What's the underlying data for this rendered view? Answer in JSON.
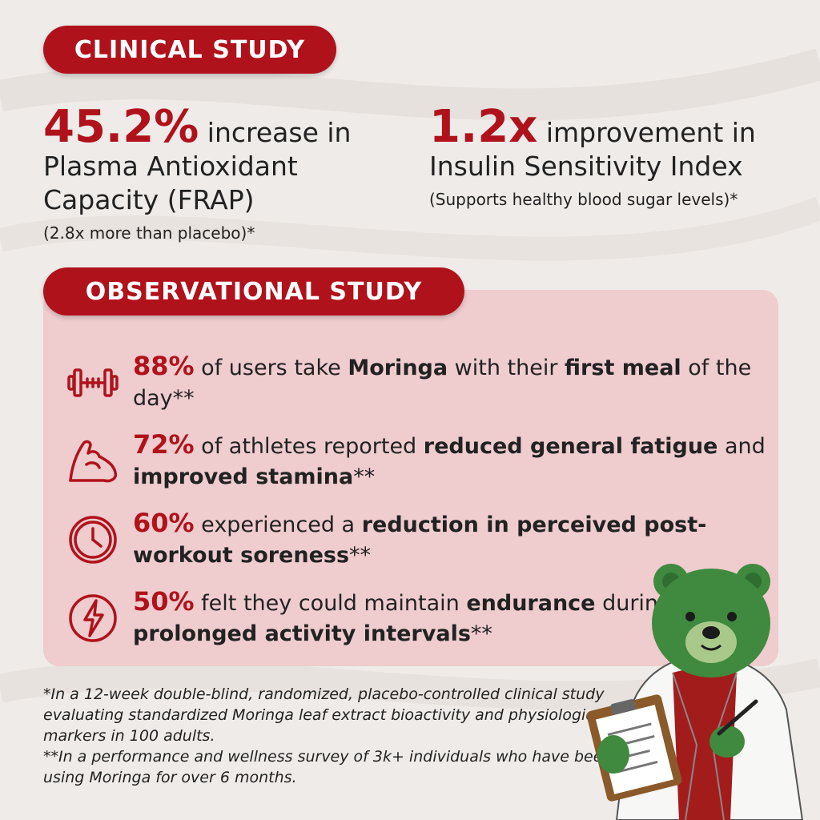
{
  "clinical": {
    "heading": "CLINICAL STUDY",
    "stat1": {
      "value": "45.2%",
      "text_inline": "increase in",
      "text_rest": "Plasma Antioxidant Capacity (FRAP)",
      "sub": "(2.8x more than placebo)*"
    },
    "stat2": {
      "value": "1.2x",
      "text_inline": "improvement in",
      "text_rest": "Insulin Sensitivity Index",
      "sub": "(Supports healthy blood sugar levels)*"
    }
  },
  "observational": {
    "heading": "OBSERVATIONAL STUDY",
    "items": [
      {
        "icon": "dumbbell-icon",
        "pct": "88%",
        "parts": [
          " of users take ",
          "Moringa",
          " with their ",
          "first meal",
          " of the day**"
        ]
      },
      {
        "icon": "flexed-arm-icon",
        "pct": "72%",
        "parts": [
          " of athletes reported ",
          "reduced general fatigue",
          " and ",
          "improved stamina",
          "**"
        ]
      },
      {
        "icon": "clock-icon",
        "pct": "60%",
        "parts": [
          " experienced a ",
          "reduction in perceived post-workout soreness",
          "**",
          "",
          ""
        ]
      },
      {
        "icon": "lightning-icon",
        "pct": "50%",
        "parts": [
          " felt they could maintain ",
          "endurance",
          " during ",
          "prolonged activity intervals",
          "**"
        ]
      }
    ]
  },
  "footnotes": {
    "single": "*In a 12-week double-blind, randomized, placebo-controlled clinical study evaluating standardized Moringa leaf extract bioactivity and physiological markers in 100 adults.",
    "double": "**In a performance and wellness survey of 3k+ individuals who have been using Moringa for over 6 months."
  },
  "colors": {
    "accent": "#b0121b",
    "panel": "#eed0d2",
    "background": "#efebe8",
    "mascot_fur": "#3f8a3e"
  }
}
